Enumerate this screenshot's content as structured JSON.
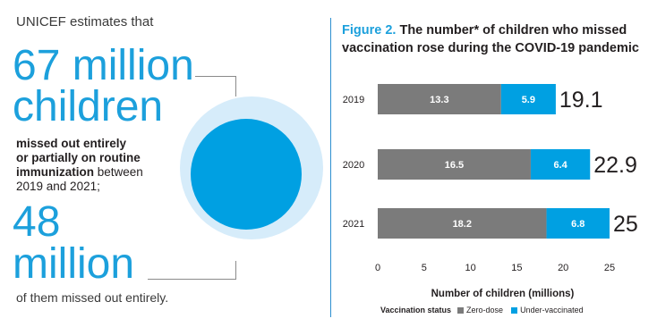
{
  "infographic": {
    "intro": "UNICEF estimates that",
    "big1_line1": "67 million",
    "big1_line2": "children",
    "desc_bold1": "missed out entirely",
    "desc_bold2": "or partially on routine",
    "desc_bold3": "immunization",
    "desc_rest": " between",
    "desc_line4": "2019 and 2021;",
    "big2_line1": "48",
    "big2_line2": "million",
    "tail": "of them missed out entirely."
  },
  "figure": {
    "label": "Figure 2.",
    "title_line1": " The number* of children who missed",
    "title_line2": "vaccination rose during the COVID-19 pandemic"
  },
  "chart_data": {
    "type": "bar",
    "orientation": "horizontal",
    "stacked": true,
    "categories": [
      "2019",
      "2020",
      "2021"
    ],
    "series": [
      {
        "name": "Zero-dose",
        "values": [
          13.3,
          16.5,
          18.2
        ],
        "color": "#7b7b7b"
      },
      {
        "name": "Under-vaccinated",
        "values": [
          5.9,
          6.4,
          6.8
        ],
        "color": "#00a0e2"
      }
    ],
    "totals": [
      "19.1",
      "22.9",
      "25"
    ],
    "xlabel": "Number of children (millions)",
    "xlim": [
      0,
      25
    ],
    "xticks": [
      0,
      5,
      10,
      15,
      20,
      25
    ],
    "legend_title": "Vaccination status",
    "legend_position": "bottom",
    "grid": false
  }
}
